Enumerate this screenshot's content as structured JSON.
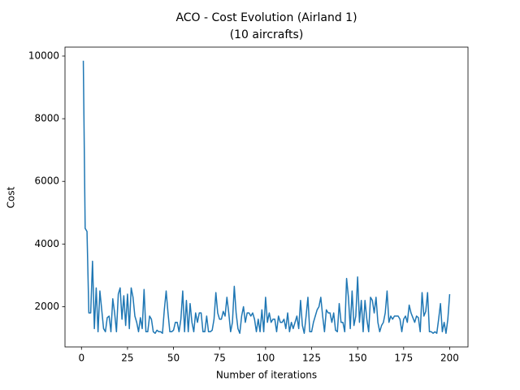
{
  "chart_data": {
    "type": "line",
    "title": "ACO - Cost Evolution (Airland 1)",
    "subtitle": "(10 aircrafts)",
    "x_label": "Number of iterations",
    "y_label": "Cost",
    "xlim": [
      -8.95,
      209.95
    ],
    "ylim": [
      715,
      10285
    ],
    "xticks": [
      0,
      25,
      50,
      75,
      100,
      125,
      150,
      175,
      200
    ],
    "yticks": [
      2000,
      4000,
      6000,
      8000,
      10000
    ],
    "grid": false,
    "x": [
      1,
      2,
      3,
      4,
      5,
      6,
      7,
      8,
      9,
      10,
      11,
      12,
      13,
      14,
      15,
      16,
      17,
      18,
      19,
      20,
      21,
      22,
      23,
      24,
      25,
      26,
      27,
      28,
      29,
      30,
      31,
      32,
      33,
      34,
      35,
      36,
      37,
      38,
      39,
      40,
      41,
      42,
      43,
      44,
      45,
      46,
      47,
      48,
      49,
      50,
      51,
      52,
      53,
      54,
      55,
      56,
      57,
      58,
      59,
      60,
      61,
      62,
      63,
      64,
      65,
      66,
      67,
      68,
      69,
      70,
      71,
      72,
      73,
      74,
      75,
      76,
      77,
      78,
      79,
      80,
      81,
      82,
      83,
      84,
      85,
      86,
      87,
      88,
      89,
      90,
      91,
      92,
      93,
      94,
      95,
      96,
      97,
      98,
      99,
      100,
      101,
      102,
      103,
      104,
      105,
      106,
      107,
      108,
      109,
      110,
      111,
      112,
      113,
      114,
      115,
      116,
      117,
      118,
      119,
      120,
      121,
      122,
      123,
      124,
      125,
      126,
      127,
      128,
      129,
      130,
      131,
      132,
      133,
      134,
      135,
      136,
      137,
      138,
      139,
      140,
      141,
      142,
      143,
      144,
      145,
      146,
      147,
      148,
      149,
      150,
      151,
      152,
      153,
      154,
      155,
      156,
      157,
      158,
      159,
      160,
      161,
      162,
      163,
      164,
      165,
      166,
      167,
      168,
      169,
      170,
      171,
      172,
      173,
      174,
      175,
      176,
      177,
      178,
      179,
      180,
      181,
      182,
      183,
      184,
      185,
      186,
      187,
      188,
      189,
      190,
      191,
      192,
      193,
      194,
      195,
      196,
      197,
      198,
      199,
      200
    ],
    "series": [
      {
        "name": "Cost",
        "color": "#1f77b4",
        "values": [
          9850,
          4500,
          4400,
          1800,
          1800,
          3450,
          1300,
          2600,
          1200,
          2500,
          1900,
          1300,
          1200,
          1650,
          1700,
          1200,
          2250,
          1800,
          1200,
          2400,
          2600,
          1600,
          2350,
          1400,
          2400,
          1300,
          2600,
          2300,
          1700,
          1500,
          1200,
          1650,
          1300,
          2550,
          1200,
          1200,
          1700,
          1600,
          1200,
          1150,
          1250,
          1200,
          1200,
          1150,
          1900,
          2500,
          1800,
          1200,
          1200,
          1250,
          1500,
          1500,
          1200,
          1600,
          2500,
          1200,
          2200,
          1200,
          2100,
          1500,
          1200,
          1800,
          1500,
          1800,
          1800,
          1200,
          1200,
          1700,
          1200,
          1200,
          1250,
          1600,
          2450,
          1800,
          1600,
          1600,
          1850,
          1700,
          2300,
          1800,
          1200,
          1500,
          2650,
          1800,
          1300,
          1150,
          1700,
          2000,
          1500,
          1800,
          1800,
          1700,
          1800,
          1600,
          1200,
          1600,
          1200,
          1900,
          1200,
          2300,
          1500,
          1800,
          1500,
          1600,
          1600,
          1200,
          1700,
          1500,
          1500,
          1600,
          1300,
          1800,
          1200,
          1500,
          1300,
          1500,
          1700,
          1300,
          2200,
          1400,
          1150,
          1700,
          2300,
          1200,
          1200,
          1500,
          1700,
          1900,
          2000,
          2300,
          1700,
          1200,
          1900,
          1800,
          1800,
          1500,
          1800,
          1250,
          1200,
          2100,
          1500,
          1500,
          1200,
          2900,
          2300,
          1300,
          2500,
          1400,
          1700,
          2950,
          1500,
          2200,
          1200,
          2200,
          1600,
          1200,
          2300,
          2200,
          1800,
          2300,
          1500,
          1200,
          1400,
          1500,
          1800,
          2500,
          1500,
          1700,
          1600,
          1700,
          1700,
          1700,
          1600,
          1200,
          1600,
          1700,
          1500,
          2050,
          1800,
          1650,
          1500,
          1700,
          1650,
          1200,
          2450,
          1700,
          1850,
          2450,
          1200,
          1200,
          1150,
          1200,
          1150,
          1600,
          2100,
          1200,
          1500,
          1150,
          1600,
          2400
        ]
      }
    ]
  }
}
